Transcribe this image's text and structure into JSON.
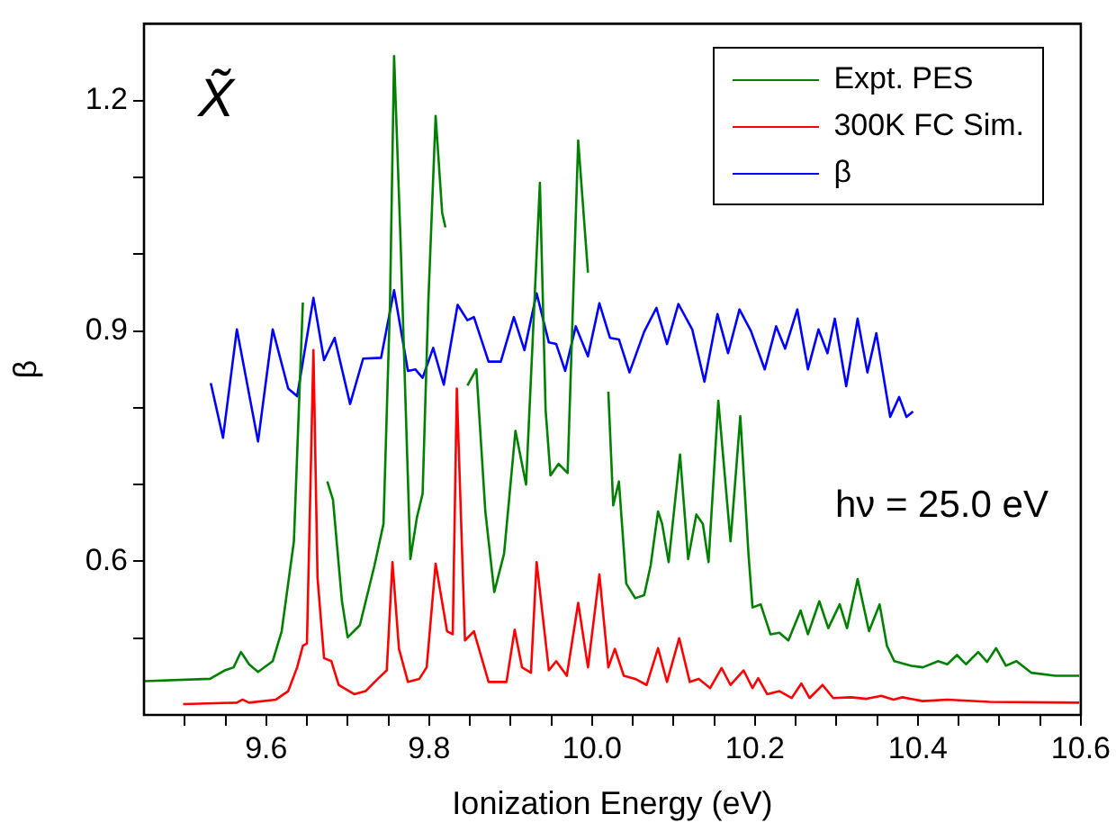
{
  "chart_data": {
    "type": "line",
    "xlabel": "Ionization Energy (eV)",
    "ylabel": "β",
    "xlim": [
      9.45,
      10.6
    ],
    "ylim": [
      0.4,
      1.3
    ],
    "xticks": [
      {
        "value": 9.5,
        "label": null
      },
      {
        "value": 9.55,
        "label": null
      },
      9.6,
      {
        "value": 9.65,
        "label": null
      },
      {
        "value": 9.7,
        "label": null
      },
      {
        "value": 9.75,
        "label": null
      },
      9.8,
      {
        "value": 9.85,
        "label": null
      },
      {
        "value": 9.9,
        "label": null
      },
      {
        "value": 9.95,
        "label": null
      },
      {
        "value": 10,
        "label": "10.0"
      },
      {
        "value": 10.05,
        "label": null
      },
      {
        "value": 10.1,
        "label": null
      },
      {
        "value": 10.15,
        "label": null
      },
      10.2,
      {
        "value": 10.25,
        "label": null
      },
      {
        "value": 10.3,
        "label": null
      },
      {
        "value": 10.35,
        "label": null
      },
      10.4,
      {
        "value": 10.45,
        "label": null
      },
      {
        "value": 10.5,
        "label": null
      },
      {
        "value": 10.55,
        "label": null
      },
      10.6
    ],
    "yticks": [
      {
        "value": 0.5,
        "label": null
      },
      0.6,
      {
        "value": 0.7,
        "label": null
      },
      {
        "value": 0.8,
        "label": null
      },
      0.9,
      {
        "value": 1.0,
        "label": null
      },
      {
        "value": 1.1,
        "label": null
      },
      1.2
    ],
    "grid": false,
    "legend": "top right",
    "marker": "none",
    "line_style": "solid",
    "annotations": [
      "X̃",
      "hν = 25.0 eV"
    ],
    "series": [
      {
        "name": "Expt. PES",
        "color": "#008000",
        "x": [
          9.45,
          9.531,
          9.549,
          9.56,
          9.569,
          9.579,
          9.59,
          9.608,
          9.619,
          9.634,
          9.645,
          9.65,
          9.667,
          9.675,
          9.682,
          9.693,
          9.7,
          9.715,
          9.733,
          9.744,
          9.752,
          9.757,
          9.765,
          9.777,
          9.785,
          9.792,
          9.799,
          9.808,
          9.816,
          9.82,
          9.825,
          9.841,
          9.847,
          9.858,
          9.869,
          9.88,
          9.892,
          9.906,
          9.919,
          9.936,
          9.943,
          9.949,
          9.959,
          9.97,
          9.983,
          9.995,
          10.002,
          10.011,
          10.02,
          10.026,
          10.033,
          10.042,
          10.053,
          10.064,
          10.072,
          10.081,
          10.086,
          10.094,
          10.108,
          10.118,
          10.128,
          10.136,
          10.143,
          10.155,
          10.17,
          10.182,
          10.192,
          10.197,
          10.207,
          10.219,
          10.23,
          10.241,
          10.256,
          10.265,
          10.279,
          10.29,
          10.304,
          10.313,
          10.326,
          10.34,
          10.353,
          10.362,
          10.371,
          10.392,
          10.406,
          10.425,
          10.436,
          10.448,
          10.459,
          10.474,
          10.485,
          10.496,
          10.508,
          10.521,
          10.539,
          10.569,
          10.598
        ],
        "values": [
          0.444,
          0.447,
          0.458,
          0.462,
          0.482,
          0.466,
          0.456,
          0.47,
          0.509,
          0.626,
          0.937,
          null,
          null,
          0.704,
          0.68,
          0.548,
          0.501,
          0.517,
          0.595,
          0.649,
          0.937,
          1.258,
          1.015,
          0.603,
          0.657,
          0.688,
          0.937,
          1.18,
          1.054,
          1.035,
          null,
          null,
          0.829,
          0.85,
          0.665,
          0.56,
          0.61,
          0.77,
          0.7,
          1.093,
          0.797,
          0.712,
          0.727,
          0.715,
          1.148,
          0.976,
          null,
          null,
          0.821,
          0.673,
          0.704,
          0.571,
          0.552,
          0.556,
          0.595,
          0.665,
          0.649,
          0.599,
          0.739,
          0.603,
          0.661,
          0.649,
          0.599,
          0.809,
          0.626,
          0.789,
          0.61,
          0.54,
          0.544,
          0.505,
          0.507,
          0.497,
          0.536,
          0.505,
          0.548,
          0.513,
          0.544,
          0.513,
          0.577,
          0.509,
          0.544,
          0.49,
          0.47,
          0.464,
          0.462,
          0.47,
          0.466,
          0.478,
          0.466,
          0.482,
          0.469,
          0.487,
          0.464,
          0.47,
          0.455,
          0.451,
          0.451
        ]
      },
      {
        "name": "300K FC Sim.",
        "color": "#ff0000",
        "x": [
          9.498,
          9.564,
          9.571,
          9.579,
          9.612,
          9.627,
          9.638,
          9.645,
          9.65,
          9.658,
          9.663,
          9.671,
          9.68,
          9.689,
          9.708,
          9.722,
          9.737,
          9.748,
          9.755,
          9.763,
          9.774,
          9.788,
          9.797,
          9.808,
          9.822,
          9.829,
          9.834,
          9.844,
          9.855,
          9.873,
          9.895,
          9.905,
          9.914,
          9.925,
          9.932,
          9.947,
          9.956,
          9.969,
          9.983,
          9.995,
          10.009,
          10.02,
          10.028,
          10.039,
          10.053,
          10.067,
          10.081,
          10.092,
          10.107,
          10.12,
          10.131,
          10.145,
          10.159,
          10.17,
          10.186,
          10.197,
          10.204,
          10.215,
          10.23,
          10.245,
          10.257,
          10.267,
          10.283,
          10.296,
          10.318,
          10.337,
          10.355,
          10.37,
          10.381,
          10.406,
          10.436,
          10.488,
          10.598
        ],
        "values": [
          0.414,
          0.416,
          0.42,
          0.416,
          0.42,
          0.431,
          0.462,
          0.49,
          0.493,
          0.875,
          0.579,
          0.474,
          0.47,
          0.439,
          0.427,
          0.431,
          0.447,
          0.458,
          0.599,
          0.486,
          0.443,
          0.447,
          0.462,
          0.597,
          0.509,
          0.505,
          0.825,
          0.497,
          0.509,
          0.443,
          0.443,
          0.511,
          0.462,
          0.455,
          0.599,
          0.458,
          0.47,
          0.451,
          0.546,
          0.462,
          0.583,
          0.462,
          0.486,
          0.451,
          0.447,
          0.439,
          0.487,
          0.443,
          0.5,
          0.443,
          0.447,
          0.435,
          0.461,
          0.439,
          0.458,
          0.435,
          0.448,
          0.427,
          0.431,
          0.422,
          0.441,
          0.422,
          0.439,
          0.422,
          0.423,
          0.421,
          0.425,
          0.42,
          0.423,
          0.418,
          0.42,
          0.417,
          0.416
        ]
      },
      {
        "name": "β",
        "color": "#0000ff",
        "x": [
          9.532,
          9.547,
          9.564,
          9.59,
          9.608,
          9.627,
          9.638,
          9.658,
          9.671,
          9.684,
          9.703,
          9.719,
          9.741,
          9.757,
          9.774,
          9.783,
          9.792,
          9.805,
          9.818,
          9.835,
          9.847,
          9.855,
          9.873,
          9.888,
          9.904,
          9.917,
          9.932,
          9.947,
          9.956,
          9.967,
          9.98,
          9.995,
          10.009,
          10.022,
          10.033,
          10.046,
          10.064,
          10.079,
          10.092,
          10.106,
          10.123,
          10.138,
          10.154,
          10.167,
          10.181,
          10.195,
          10.212,
          10.226,
          10.237,
          10.252,
          10.265,
          10.278,
          10.289,
          10.298,
          10.312,
          10.326,
          10.338,
          10.349,
          10.366,
          10.377,
          10.386,
          10.394
        ],
        "values": [
          0.832,
          0.761,
          0.902,
          0.756,
          0.902,
          0.825,
          0.815,
          0.943,
          0.862,
          0.891,
          0.805,
          0.864,
          0.865,
          0.953,
          0.848,
          0.85,
          0.839,
          0.878,
          0.83,
          0.934,
          0.914,
          0.918,
          0.86,
          0.86,
          0.918,
          0.875,
          0.949,
          0.885,
          0.883,
          0.848,
          0.906,
          0.867,
          0.936,
          0.891,
          0.889,
          0.846,
          0.899,
          0.93,
          0.883,
          0.935,
          0.902,
          0.834,
          0.922,
          0.871,
          0.928,
          0.9,
          0.85,
          0.906,
          0.877,
          0.928,
          0.85,
          0.902,
          0.871,
          0.916,
          0.828,
          0.916,
          0.846,
          0.897,
          0.788,
          0.814,
          0.788,
          0.795
        ]
      }
    ]
  }
}
